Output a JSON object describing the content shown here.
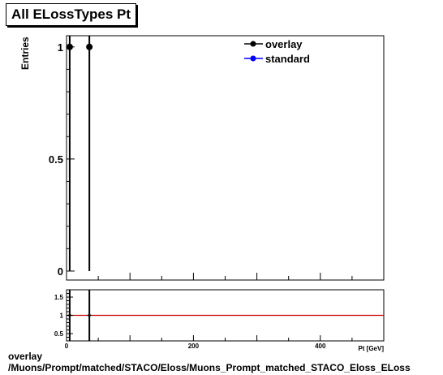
{
  "title": "All ELossTypes Pt",
  "footer": {
    "line1": "overlay",
    "line2": "/Muons/Prompt/matched/STACO/Eloss/Muons_Prompt_matched_STACO_Eloss_ELoss"
  },
  "chart_data": [
    {
      "type": "scatter",
      "ylabel": "Entries",
      "xlabel": "Pt [GeV]",
      "xlim": [
        0,
        500
      ],
      "ylim": [
        -0.04,
        1.05
      ],
      "y_ticks": [
        0,
        0.5,
        1
      ],
      "y_tick_labels": [
        "0",
        "0.5",
        "1"
      ],
      "legend_position": "top-right",
      "series": [
        {
          "name": "overlay",
          "color": "#000000",
          "points": [
            {
              "x": 5,
              "y": 1,
              "err": 1
            },
            {
              "x": 36,
              "y": 1,
              "err": 1
            }
          ]
        },
        {
          "name": "standard",
          "color": "#0000ff",
          "points": []
        }
      ]
    },
    {
      "type": "scatter",
      "xlim": [
        0,
        500
      ],
      "ylim": [
        0.3,
        1.7
      ],
      "x_ticks": [
        0,
        200,
        400
      ],
      "x_tick_labels": [
        "0",
        "200",
        "400"
      ],
      "y_ticks": [
        0.5,
        1,
        1.5
      ],
      "y_tick_labels": [
        "0.5",
        "1",
        "1.5"
      ],
      "reference_line": {
        "y": 1,
        "color": "#cc0000"
      },
      "points": [
        {
          "x": 5,
          "y": 1,
          "err": 1
        },
        {
          "x": 36,
          "y": 1,
          "err": 1
        }
      ]
    }
  ]
}
